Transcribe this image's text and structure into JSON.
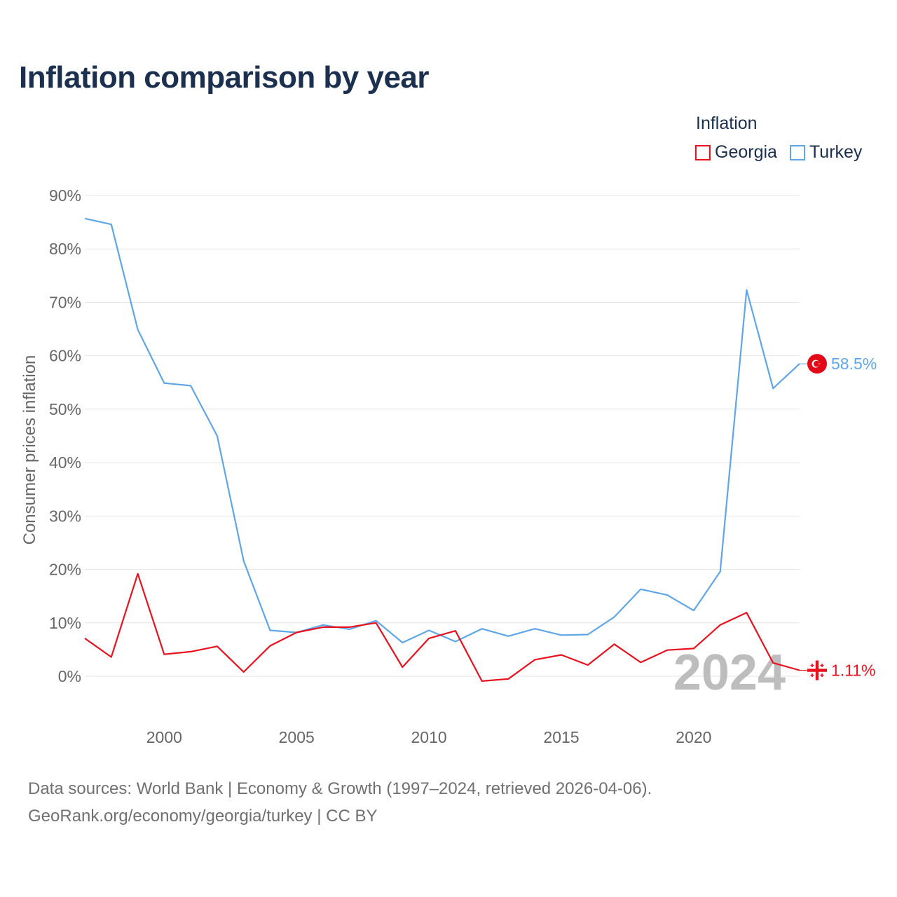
{
  "header": {
    "title": "Inflation comparison by year"
  },
  "legend": {
    "title": "Inflation",
    "items": [
      {
        "name": "Georgia",
        "color": "#e8121e"
      },
      {
        "name": "Turkey",
        "color": "#5fa6e8"
      }
    ]
  },
  "watermark": {
    "year": "2024"
  },
  "source": {
    "line1": "Data sources: World Bank | Economy & Growth (1997–2024, retrieved 2026-04-06).",
    "line2": "GeoRank.org/economy/georgia/turkey | CC BY"
  },
  "chart_data": {
    "type": "line",
    "title": "Inflation comparison by year",
    "xlabel": "",
    "ylabel": "Consumer prices inflation",
    "xlim": [
      1997,
      2024
    ],
    "ylim": [
      -10,
      90
    ],
    "x_ticks": [
      2000,
      2005,
      2010,
      2015,
      2020
    ],
    "y_ticks": [
      0,
      10,
      20,
      30,
      40,
      50,
      60,
      70,
      80,
      90
    ],
    "y_tick_labels": [
      "0%",
      "10%",
      "20%",
      "30%",
      "40%",
      "50%",
      "60%",
      "70%",
      "80%",
      "90%"
    ],
    "grid": true,
    "legend_position": "top-right",
    "x": [
      1997,
      1998,
      1999,
      2000,
      2001,
      2002,
      2003,
      2004,
      2005,
      2006,
      2007,
      2008,
      2009,
      2010,
      2011,
      2012,
      2013,
      2014,
      2015,
      2016,
      2017,
      2018,
      2019,
      2020,
      2021,
      2022,
      2023,
      2024
    ],
    "series": [
      {
        "name": "Turkey",
        "color": "#5fa6e8",
        "end_label": "58.5%",
        "values": [
          85.7,
          84.6,
          64.9,
          54.9,
          54.4,
          45.0,
          21.6,
          8.6,
          8.2,
          9.6,
          8.8,
          10.4,
          6.3,
          8.6,
          6.5,
          8.9,
          7.5,
          8.9,
          7.7,
          7.8,
          11.1,
          16.3,
          15.2,
          12.3,
          19.6,
          72.3,
          53.9,
          58.5
        ]
      },
      {
        "name": "Georgia",
        "color": "#e8121e",
        "end_label": "1.11%",
        "values": [
          7.1,
          3.6,
          19.2,
          4.1,
          4.6,
          5.6,
          0.8,
          5.7,
          8.2,
          9.2,
          9.2,
          10.0,
          1.7,
          7.1,
          8.5,
          -0.9,
          -0.5,
          3.1,
          4.0,
          2.1,
          6.0,
          2.6,
          4.9,
          5.2,
          9.6,
          11.9,
          2.5,
          1.11
        ]
      }
    ]
  }
}
